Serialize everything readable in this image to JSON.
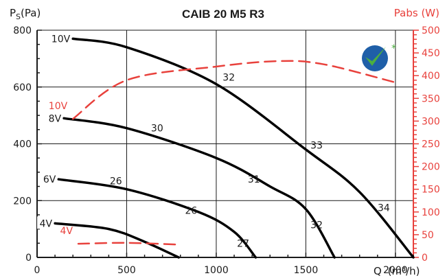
{
  "chart_data": {
    "type": "line",
    "title": "CAIB 20 M5 R3",
    "ylabel_left": "P",
    "ylabel_left_sub": "S",
    "ylabel_left_unit": "(Pa)",
    "ylabel_right": "Pabs (W)",
    "xlabel_prefix": "Q",
    "xlabel_unit": "(m³/h)",
    "xlim": [
      0,
      2100
    ],
    "ylim_left": [
      0,
      800
    ],
    "ylim_right": [
      0,
      500
    ],
    "x_ticks": [
      0,
      500,
      1000,
      1500,
      2000
    ],
    "y_left_ticks": [
      0,
      200,
      400,
      600,
      800
    ],
    "y_right_ticks": [
      0,
      50,
      100,
      150,
      200,
      250,
      300,
      350,
      400,
      450,
      500
    ],
    "grid": true,
    "colors": {
      "pressure": "#000000",
      "power": "#e8413c",
      "logo_blue": "#1f5fa8",
      "logo_green": "#4caf3f"
    },
    "series": [
      {
        "name": "10V",
        "axis": "left",
        "points": [
          [
            200,
            770
          ],
          [
            500,
            740
          ],
          [
            1000,
            610
          ],
          [
            1500,
            380
          ],
          [
            1800,
            230
          ],
          [
            2100,
            0
          ]
        ]
      },
      {
        "name": "8V",
        "axis": "left",
        "points": [
          [
            150,
            490
          ],
          [
            500,
            455
          ],
          [
            1000,
            350
          ],
          [
            1300,
            250
          ],
          [
            1500,
            170
          ],
          [
            1660,
            0
          ]
        ]
      },
      {
        "name": "6V",
        "axis": "left",
        "points": [
          [
            120,
            275
          ],
          [
            500,
            240
          ],
          [
            900,
            160
          ],
          [
            1100,
            90
          ],
          [
            1220,
            0
          ]
        ]
      },
      {
        "name": "4V",
        "axis": "left",
        "points": [
          [
            100,
            120
          ],
          [
            400,
            100
          ],
          [
            600,
            55
          ],
          [
            790,
            0
          ]
        ]
      },
      {
        "name": "10V",
        "axis": "right",
        "dashed": true,
        "points": [
          [
            200,
            305
          ],
          [
            500,
            390
          ],
          [
            1000,
            420
          ],
          [
            1350,
            432
          ],
          [
            1600,
            425
          ],
          [
            2000,
            385
          ]
        ]
      },
      {
        "name": "4V",
        "axis": "right",
        "dashed": true,
        "points": [
          [
            230,
            30
          ],
          [
            500,
            32
          ],
          [
            800,
            28
          ]
        ]
      }
    ],
    "annotations": [
      {
        "text": "32",
        "x": 1070,
        "y": 635
      },
      {
        "text": "33",
        "x": 1560,
        "y": 395
      },
      {
        "text": "34",
        "x": 1935,
        "y": 175
      },
      {
        "text": "30",
        "x": 670,
        "y": 455
      },
      {
        "text": "31",
        "x": 1210,
        "y": 275
      },
      {
        "text": "32",
        "x": 1560,
        "y": 115
      },
      {
        "text": "26",
        "x": 440,
        "y": 270
      },
      {
        "text": "26",
        "x": 860,
        "y": 165
      },
      {
        "text": "27",
        "x": 1150,
        "y": 50
      }
    ]
  }
}
